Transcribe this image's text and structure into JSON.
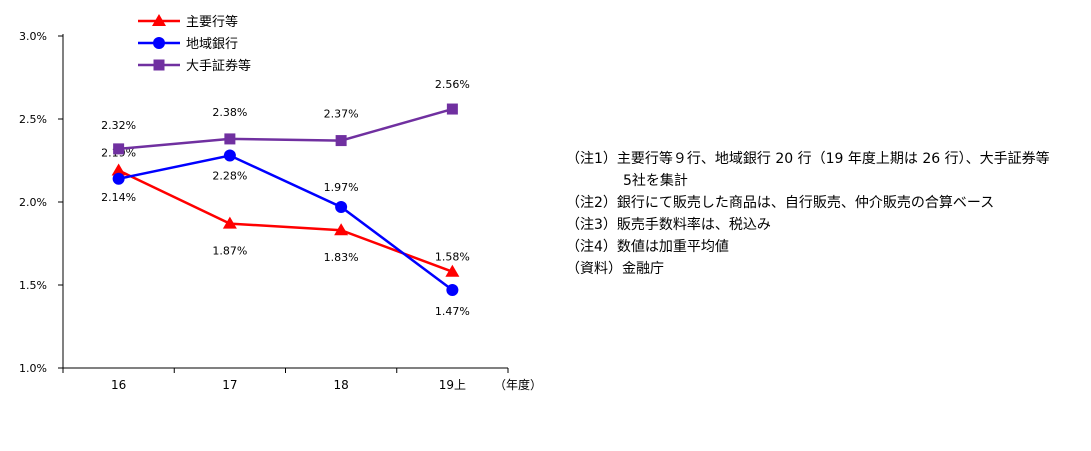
{
  "chart_data": {
    "type": "line",
    "categories": [
      "16",
      "17",
      "18",
      "19上"
    ],
    "x_unit": "（年度）",
    "ylim": [
      1.0,
      3.0
    ],
    "yticks": [
      "1.0%",
      "1.5%",
      "2.0%",
      "2.5%",
      "3.0%"
    ],
    "ytick_values": [
      1.0,
      1.5,
      2.0,
      2.5,
      3.0
    ],
    "legend_position": "top-left",
    "grid": false,
    "series": [
      {
        "name": "主要行等",
        "color": "#ff0000",
        "marker": "triangle",
        "values": [
          2.19,
          1.87,
          1.83,
          1.58
        ],
        "labels": [
          "2.19%",
          "1.87%",
          "1.83%",
          "1.58%"
        ]
      },
      {
        "name": "地域銀行",
        "color": "#0000ff",
        "marker": "circle",
        "values": [
          2.14,
          2.28,
          1.97,
          1.47
        ],
        "labels": [
          "2.14%",
          "2.28%",
          "1.97%",
          "1.47%"
        ]
      },
      {
        "name": "大手証券等",
        "color": "#7030a0",
        "marker": "square",
        "values": [
          2.32,
          2.38,
          2.37,
          2.56
        ],
        "labels": [
          "2.32%",
          "2.38%",
          "2.37%",
          "2.56%"
        ]
      }
    ]
  },
  "notes": {
    "n1a": "（注1）主要行等９行、地域銀行 20 行（19 年度上期は 26 行）、大手証券等",
    "n1b": "5社を集計",
    "n2": "（注2）銀行にて販売した商品は、自行販売、仲介販売の合算ベース",
    "n3": "（注3）販売手数料率は、税込み",
    "n4": "（注4）数値は加重平均値",
    "src": "（資料）金融庁"
  }
}
